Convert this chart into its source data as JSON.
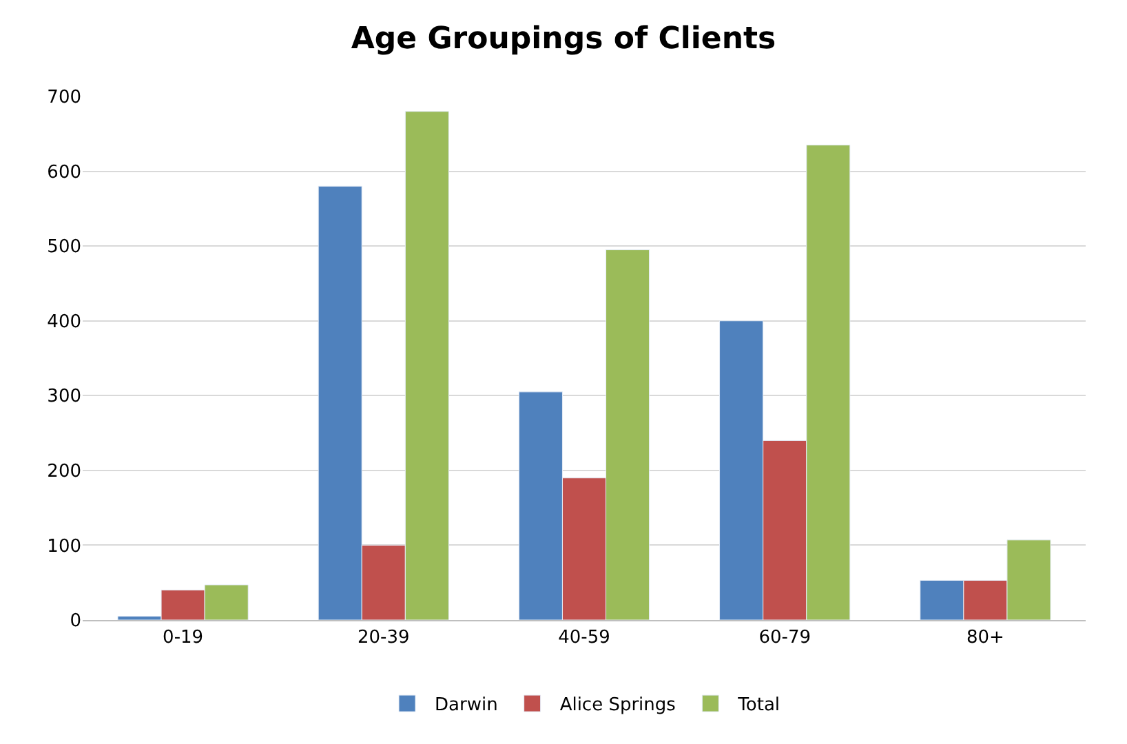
{
  "chart_data": {
    "type": "bar",
    "title": "Age Groupings of Clients",
    "categories": [
      "0-19",
      "20-39",
      "40-59",
      "60-79",
      "80+"
    ],
    "series": [
      {
        "name": "Darwin",
        "color": "#4f81bd",
        "values": [
          5,
          580,
          305,
          400,
          53
        ]
      },
      {
        "name": "Alice Springs",
        "color": "#c0504d",
        "values": [
          40,
          100,
          190,
          240,
          53
        ]
      },
      {
        "name": "Total",
        "color": "#9bbb59",
        "values": [
          47,
          680,
          495,
          635,
          107
        ]
      }
    ],
    "ylim": [
      0,
      700
    ],
    "yticks": [
      0,
      100,
      200,
      300,
      400,
      500,
      600,
      700
    ],
    "grid": "y",
    "legend": "bottom"
  }
}
